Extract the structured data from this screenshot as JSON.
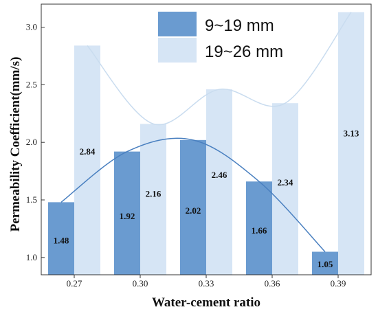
{
  "chart_data": {
    "type": "bar",
    "xlabel": "Water-cement ratio",
    "ylabel": "Permeability Coefficient(mm/s)",
    "categories": [
      "0.27",
      "0.30",
      "0.33",
      "0.36",
      "0.39"
    ],
    "ylim": [
      0.85,
      3.2
    ],
    "yticks": [
      "1.0",
      "1.5",
      "2.0",
      "2.5",
      "3.0"
    ],
    "legend_position": "top-right",
    "grid": false,
    "series": [
      {
        "name": "9~19 mm",
        "values": [
          1.48,
          1.92,
          2.02,
          1.66,
          1.05
        ],
        "labels": [
          "1.48",
          "1.92",
          "2.02",
          "1.66",
          "1.05"
        ],
        "color": "#6a9bd0",
        "trend": "smooth curve"
      },
      {
        "name": "19~26 mm",
        "values": [
          2.84,
          2.16,
          2.46,
          2.34,
          3.13
        ],
        "labels": [
          "2.84",
          "2.16",
          "2.46",
          "2.34",
          "3.13"
        ],
        "color": "#d6e5f5",
        "trend": "smooth curve"
      }
    ],
    "trend_colors": [
      "#4a80c0",
      "#c9dcef"
    ]
  }
}
